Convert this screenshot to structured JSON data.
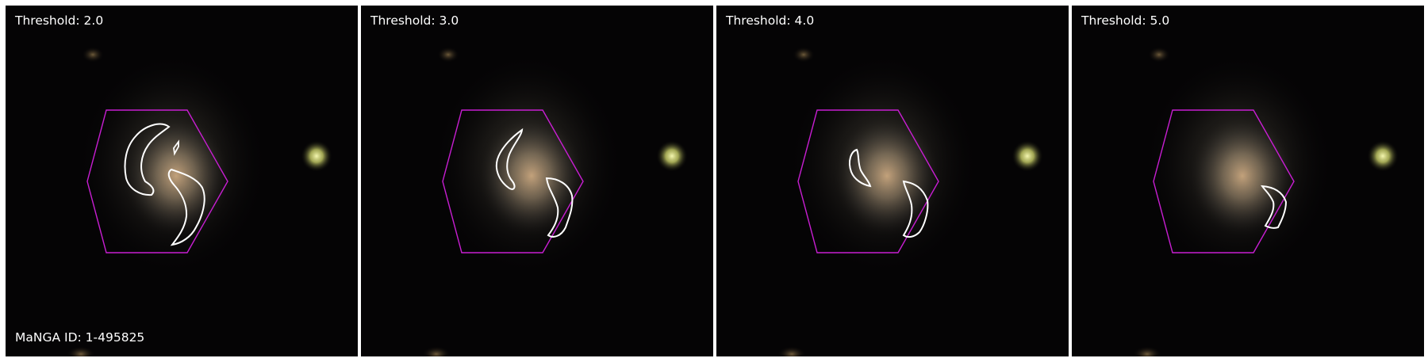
{
  "panels": [
    {
      "threshold_label": "Threshold: 2.0"
    },
    {
      "threshold_label": "Threshold: 3.0"
    },
    {
      "threshold_label": "Threshold: 4.0"
    },
    {
      "threshold_label": "Threshold: 5.0"
    }
  ],
  "galaxy_id_label": "MaNGA ID: 1-495825",
  "colors": {
    "background": "#050405",
    "hexagon": "#c81ed2",
    "contour": "#ffffff",
    "star": "#e6ec8c"
  }
}
